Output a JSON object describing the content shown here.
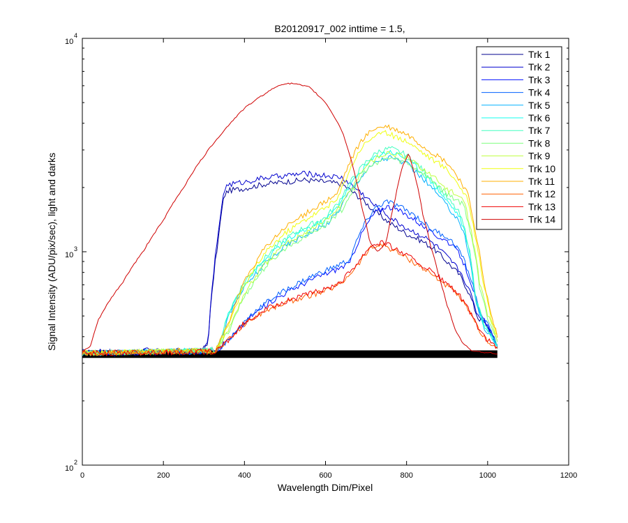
{
  "chart_data": {
    "type": "line",
    "title": "B20120917_002 inttime = 1.5,",
    "xlabel": "Wavelength Dim/Pixel",
    "ylabel": "Signal Intensity (ADU/pix/sec), light and darks",
    "xlim": [
      0,
      1200
    ],
    "ylim": [
      100,
      10000
    ],
    "yscale": "log",
    "x_ticks": [
      0,
      200,
      400,
      600,
      800,
      1000,
      1200
    ],
    "x_tick_labels": [
      "0",
      "200",
      "400",
      "600",
      "800",
      "1000",
      "1200"
    ],
    "y_ticks": [
      {
        "value": 100,
        "base": "10",
        "exp": "2"
      },
      {
        "value": 1000,
        "base": "10",
        "exp": "3"
      },
      {
        "value": 10000,
        "base": "10",
        "exp": "4"
      }
    ],
    "grid": false,
    "legend_position": "top-right",
    "series": [
      {
        "name": "Trk 1",
        "color": "#00008f",
        "group": "blue-step"
      },
      {
        "name": "Trk 2",
        "color": "#0000cf",
        "group": "blue-step"
      },
      {
        "name": "Trk 3",
        "color": "#0010ff",
        "group": "blue-hump"
      },
      {
        "name": "Trk 4",
        "color": "#0060ff",
        "group": "blue-hump"
      },
      {
        "name": "Trk 5",
        "color": "#00b0ff",
        "group": "cyan-hump"
      },
      {
        "name": "Trk 6",
        "color": "#10ffef",
        "group": "cyan-hump"
      },
      {
        "name": "Trk 7",
        "color": "#40ffbf",
        "group": "cyan-hump"
      },
      {
        "name": "Trk 8",
        "color": "#80ff80",
        "group": "green-hump"
      },
      {
        "name": "Trk 9",
        "color": "#bfff40",
        "group": "green-hump"
      },
      {
        "name": "Trk 10",
        "color": "#efff10",
        "group": "yellow-hump"
      },
      {
        "name": "Trk 11",
        "color": "#ffaf00",
        "group": "yellow-hump"
      },
      {
        "name": "Trk 12",
        "color": "#ff6000",
        "group": "red-hump"
      },
      {
        "name": "Trk 13",
        "color": "#ef0000",
        "group": "red-hump"
      },
      {
        "name": "Trk 14",
        "color": "#cf0000",
        "group": "red-arc"
      }
    ],
    "profiles": {
      "dark": [
        [
          0,
          330
        ],
        [
          1024,
          330
        ]
      ],
      "blue-step": [
        [
          0,
          340
        ],
        [
          30,
          335
        ],
        [
          60,
          345
        ],
        [
          80,
          333
        ],
        [
          100,
          345
        ],
        [
          130,
          335
        ],
        [
          160,
          345
        ],
        [
          200,
          340
        ],
        [
          250,
          345
        ],
        [
          290,
          340
        ],
        [
          310,
          370
        ],
        [
          320,
          650
        ],
        [
          335,
          1150
        ],
        [
          350,
          1900
        ],
        [
          360,
          2000
        ],
        [
          400,
          2050
        ],
        [
          450,
          2150
        ],
        [
          500,
          2200
        ],
        [
          550,
          2250
        ],
        [
          600,
          2200
        ],
        [
          640,
          2150
        ],
        [
          670,
          1950
        ],
        [
          700,
          1750
        ],
        [
          720,
          1600
        ],
        [
          760,
          1400
        ],
        [
          800,
          1250
        ],
        [
          840,
          1150
        ],
        [
          870,
          1050
        ],
        [
          900,
          920
        ],
        [
          930,
          800
        ],
        [
          950,
          680
        ],
        [
          975,
          500
        ],
        [
          1000,
          450
        ],
        [
          1024,
          360
        ]
      ],
      "blue-hump": [
        [
          0,
          335
        ],
        [
          300,
          340
        ],
        [
          340,
          355
        ],
        [
          380,
          420
        ],
        [
          420,
          510
        ],
        [
          470,
          600
        ],
        [
          520,
          680
        ],
        [
          570,
          760
        ],
        [
          620,
          830
        ],
        [
          660,
          900
        ],
        [
          690,
          1250
        ],
        [
          720,
          1550
        ],
        [
          750,
          1680
        ],
        [
          780,
          1600
        ],
        [
          820,
          1450
        ],
        [
          860,
          1250
        ],
        [
          900,
          1150
        ],
        [
          930,
          1000
        ],
        [
          960,
          720
        ],
        [
          980,
          520
        ],
        [
          1000,
          450
        ],
        [
          1024,
          360
        ]
      ],
      "cyan-hump": [
        [
          0,
          335
        ],
        [
          330,
          345
        ],
        [
          345,
          400
        ],
        [
          360,
          500
        ],
        [
          400,
          700
        ],
        [
          450,
          900
        ],
        [
          500,
          1100
        ],
        [
          550,
          1250
        ],
        [
          600,
          1380
        ],
        [
          630,
          1600
        ],
        [
          660,
          2000
        ],
        [
          700,
          2500
        ],
        [
          730,
          2800
        ],
        [
          760,
          2900
        ],
        [
          800,
          2700
        ],
        [
          840,
          2300
        ],
        [
          870,
          2000
        ],
        [
          900,
          1700
        ],
        [
          930,
          1450
        ],
        [
          950,
          1100
        ],
        [
          970,
          600
        ],
        [
          990,
          450
        ],
        [
          1024,
          360
        ]
      ],
      "green-hump": [
        [
          0,
          335
        ],
        [
          330,
          345
        ],
        [
          360,
          420
        ],
        [
          400,
          620
        ],
        [
          450,
          850
        ],
        [
          500,
          1050
        ],
        [
          550,
          1200
        ],
        [
          600,
          1350
        ],
        [
          640,
          1600
        ],
        [
          670,
          2000
        ],
        [
          700,
          2450
        ],
        [
          730,
          2700
        ],
        [
          760,
          2800
        ],
        [
          800,
          2650
        ],
        [
          850,
          2300
        ],
        [
          900,
          1900
        ],
        [
          940,
          1700
        ],
        [
          960,
          1200
        ],
        [
          980,
          700
        ],
        [
          1000,
          500
        ],
        [
          1024,
          380
        ]
      ],
      "yellow-hump": [
        [
          0,
          335
        ],
        [
          330,
          345
        ],
        [
          360,
          450
        ],
        [
          400,
          700
        ],
        [
          450,
          1000
        ],
        [
          500,
          1250
        ],
        [
          550,
          1450
        ],
        [
          600,
          1650
        ],
        [
          630,
          1800
        ],
        [
          660,
          2500
        ],
        [
          690,
          3200
        ],
        [
          720,
          3600
        ],
        [
          750,
          3700
        ],
        [
          800,
          3400
        ],
        [
          850,
          2900
        ],
        [
          900,
          2500
        ],
        [
          930,
          2100
        ],
        [
          950,
          1800
        ],
        [
          970,
          1200
        ],
        [
          990,
          700
        ],
        [
          1010,
          480
        ],
        [
          1024,
          400
        ]
      ],
      "red-hump": [
        [
          0,
          335
        ],
        [
          330,
          340
        ],
        [
          370,
          400
        ],
        [
          400,
          460
        ],
        [
          450,
          530
        ],
        [
          500,
          580
        ],
        [
          550,
          620
        ],
        [
          600,
          660
        ],
        [
          640,
          720
        ],
        [
          680,
          880
        ],
        [
          710,
          1050
        ],
        [
          740,
          1100
        ],
        [
          780,
          1000
        ],
        [
          820,
          900
        ],
        [
          860,
          800
        ],
        [
          900,
          700
        ],
        [
          930,
          620
        ],
        [
          950,
          540
        ],
        [
          970,
          460
        ],
        [
          990,
          400
        ],
        [
          1010,
          370
        ],
        [
          1024,
          350
        ]
      ],
      "red-arc": [
        [
          0,
          340
        ],
        [
          20,
          360
        ],
        [
          40,
          480
        ],
        [
          60,
          560
        ],
        [
          100,
          720
        ],
        [
          150,
          1000
        ],
        [
          200,
          1400
        ],
        [
          250,
          2000
        ],
        [
          300,
          2800
        ],
        [
          350,
          3700
        ],
        [
          400,
          4700
        ],
        [
          450,
          5500
        ],
        [
          490,
          6100
        ],
        [
          520,
          6150
        ],
        [
          560,
          5900
        ],
        [
          600,
          5000
        ],
        [
          640,
          3700
        ],
        [
          670,
          2400
        ],
        [
          690,
          1600
        ],
        [
          710,
          1100
        ],
        [
          730,
          1000
        ],
        [
          750,
          1100
        ],
        [
          770,
          1700
        ],
        [
          790,
          2500
        ],
        [
          805,
          2900
        ],
        [
          820,
          2300
        ],
        [
          840,
          1500
        ],
        [
          860,
          1050
        ],
        [
          880,
          760
        ],
        [
          900,
          560
        ],
        [
          920,
          430
        ],
        [
          940,
          370
        ],
        [
          960,
          345
        ],
        [
          1000,
          336
        ],
        [
          1024,
          333
        ]
      ]
    }
  }
}
